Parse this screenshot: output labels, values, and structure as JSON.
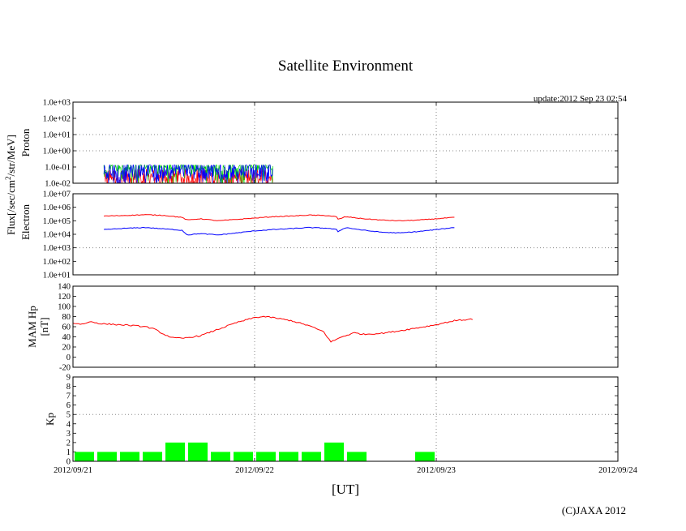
{
  "chart_data": {
    "title": "Satellite Environment",
    "update_text": "update:2012 Sep 23 02:54",
    "copyright": "(C)JAXA 2012",
    "xlabel": "[UT]",
    "x_ticks": [
      "2012/09/21",
      "2012/09/22",
      "2012/09/23",
      "2012/09/24"
    ],
    "x_range_days": [
      0,
      3
    ],
    "colors": {
      "red": "#ff0000",
      "blue": "#0000ff",
      "green": "#00dd00",
      "kp_bar": "#00ff00",
      "grid": "#888888"
    },
    "panels": [
      {
        "id": "proton",
        "type": "line",
        "scale": "log",
        "ylabel": "Proton",
        "shared_ylabel": "Flux[/sec/cm²/str/MeV]",
        "shared_ylabel_main": "Flux[/sec/cm",
        "shared_ylabel_sup": "2",
        "shared_ylabel_tail": "/str/MeV]",
        "ytick_labels": [
          "1.0e-02",
          "1.0e-01",
          "1.0e+00",
          "1.0e+01",
          "1.0e+02",
          "1.0e+03"
        ],
        "ylim_exp": [
          -2,
          3
        ],
        "grid_y_exp": [
          0,
          1
        ],
        "data_x_range": [
          0.17,
          1.1
        ],
        "series": [
          {
            "color": "red",
            "base_exp": -1.6,
            "noise": 0.5
          },
          {
            "color": "green",
            "base_exp": -1.0,
            "noise": 0.25
          },
          {
            "color": "blue",
            "base_exp": -1.15,
            "noise": 0.6
          }
        ]
      },
      {
        "id": "electron",
        "type": "line",
        "scale": "log",
        "ylabel": "Electron",
        "ytick_labels": [
          "1.0e+01",
          "1.0e+02",
          "1.0e+03",
          "1.0e+04",
          "1.0e+05",
          "1.0e+06",
          "1.0e+07"
        ],
        "ylim_exp": [
          1,
          7
        ],
        "grid_y_exp": [
          3
        ],
        "series": [
          {
            "color": "red",
            "x": [
              0.17,
              0.3,
              0.4,
              0.5,
              0.6,
              0.63,
              0.7,
              0.8,
              0.9,
              1.0,
              1.1,
              1.2,
              1.3,
              1.4,
              1.45,
              1.46,
              1.5,
              1.6,
              1.7,
              1.8,
              1.9,
              2.0,
              2.1
            ],
            "y_exp": [
              5.35,
              5.4,
              5.45,
              5.4,
              5.25,
              5.05,
              5.15,
              5.0,
              5.1,
              5.2,
              5.3,
              5.35,
              5.42,
              5.38,
              5.3,
              5.1,
              5.3,
              5.15,
              5.05,
              5.0,
              5.05,
              5.15,
              5.25
            ]
          },
          {
            "color": "blue",
            "x": [
              0.17,
              0.3,
              0.4,
              0.5,
              0.6,
              0.63,
              0.7,
              0.8,
              0.9,
              1.0,
              1.1,
              1.2,
              1.3,
              1.4,
              1.45,
              1.46,
              1.5,
              1.6,
              1.7,
              1.8,
              1.9,
              2.0,
              2.1
            ],
            "y_exp": [
              4.35,
              4.45,
              4.5,
              4.4,
              4.3,
              3.95,
              4.05,
              3.95,
              4.1,
              4.25,
              4.35,
              4.42,
              4.5,
              4.45,
              4.35,
              4.2,
              4.5,
              4.3,
              4.15,
              4.1,
              4.2,
              4.35,
              4.5
            ]
          }
        ]
      },
      {
        "id": "mamhp",
        "type": "line",
        "scale": "linear",
        "ylabel_lines": [
          "MAM Hp",
          "[nT]"
        ],
        "ylim": [
          -20,
          140
        ],
        "yticks": [
          -20,
          0,
          20,
          40,
          60,
          80,
          100,
          120,
          140
        ],
        "series": [
          {
            "color": "red",
            "x": [
              0.0,
              0.05,
              0.1,
              0.15,
              0.2,
              0.3,
              0.4,
              0.45,
              0.5,
              0.55,
              0.6,
              0.7,
              0.8,
              0.9,
              1.0,
              1.05,
              1.1,
              1.2,
              1.3,
              1.38,
              1.42,
              1.48,
              1.55,
              1.6,
              1.7,
              1.8,
              1.9,
              2.0,
              2.1,
              2.2
            ],
            "y": [
              67,
              65,
              70,
              66,
              65,
              63,
              60,
              55,
              45,
              38,
              37,
              42,
              55,
              68,
              78,
              80,
              78,
              72,
              62,
              50,
              30,
              40,
              48,
              45,
              47,
              52,
              58,
              64,
              72,
              75
            ]
          }
        ]
      },
      {
        "id": "kp",
        "type": "bar",
        "scale": "linear",
        "ylabel": "Kp",
        "ylim": [
          0,
          9
        ],
        "yticks": [
          0,
          1,
          2,
          3,
          4,
          5,
          6,
          7,
          8,
          9
        ],
        "grid_y": [
          5
        ],
        "bar_width_days": 0.125,
        "values": [
          1,
          1,
          1,
          1,
          2,
          2,
          1,
          1,
          1,
          1,
          1,
          2,
          1,
          0,
          0,
          1
        ]
      }
    ]
  }
}
